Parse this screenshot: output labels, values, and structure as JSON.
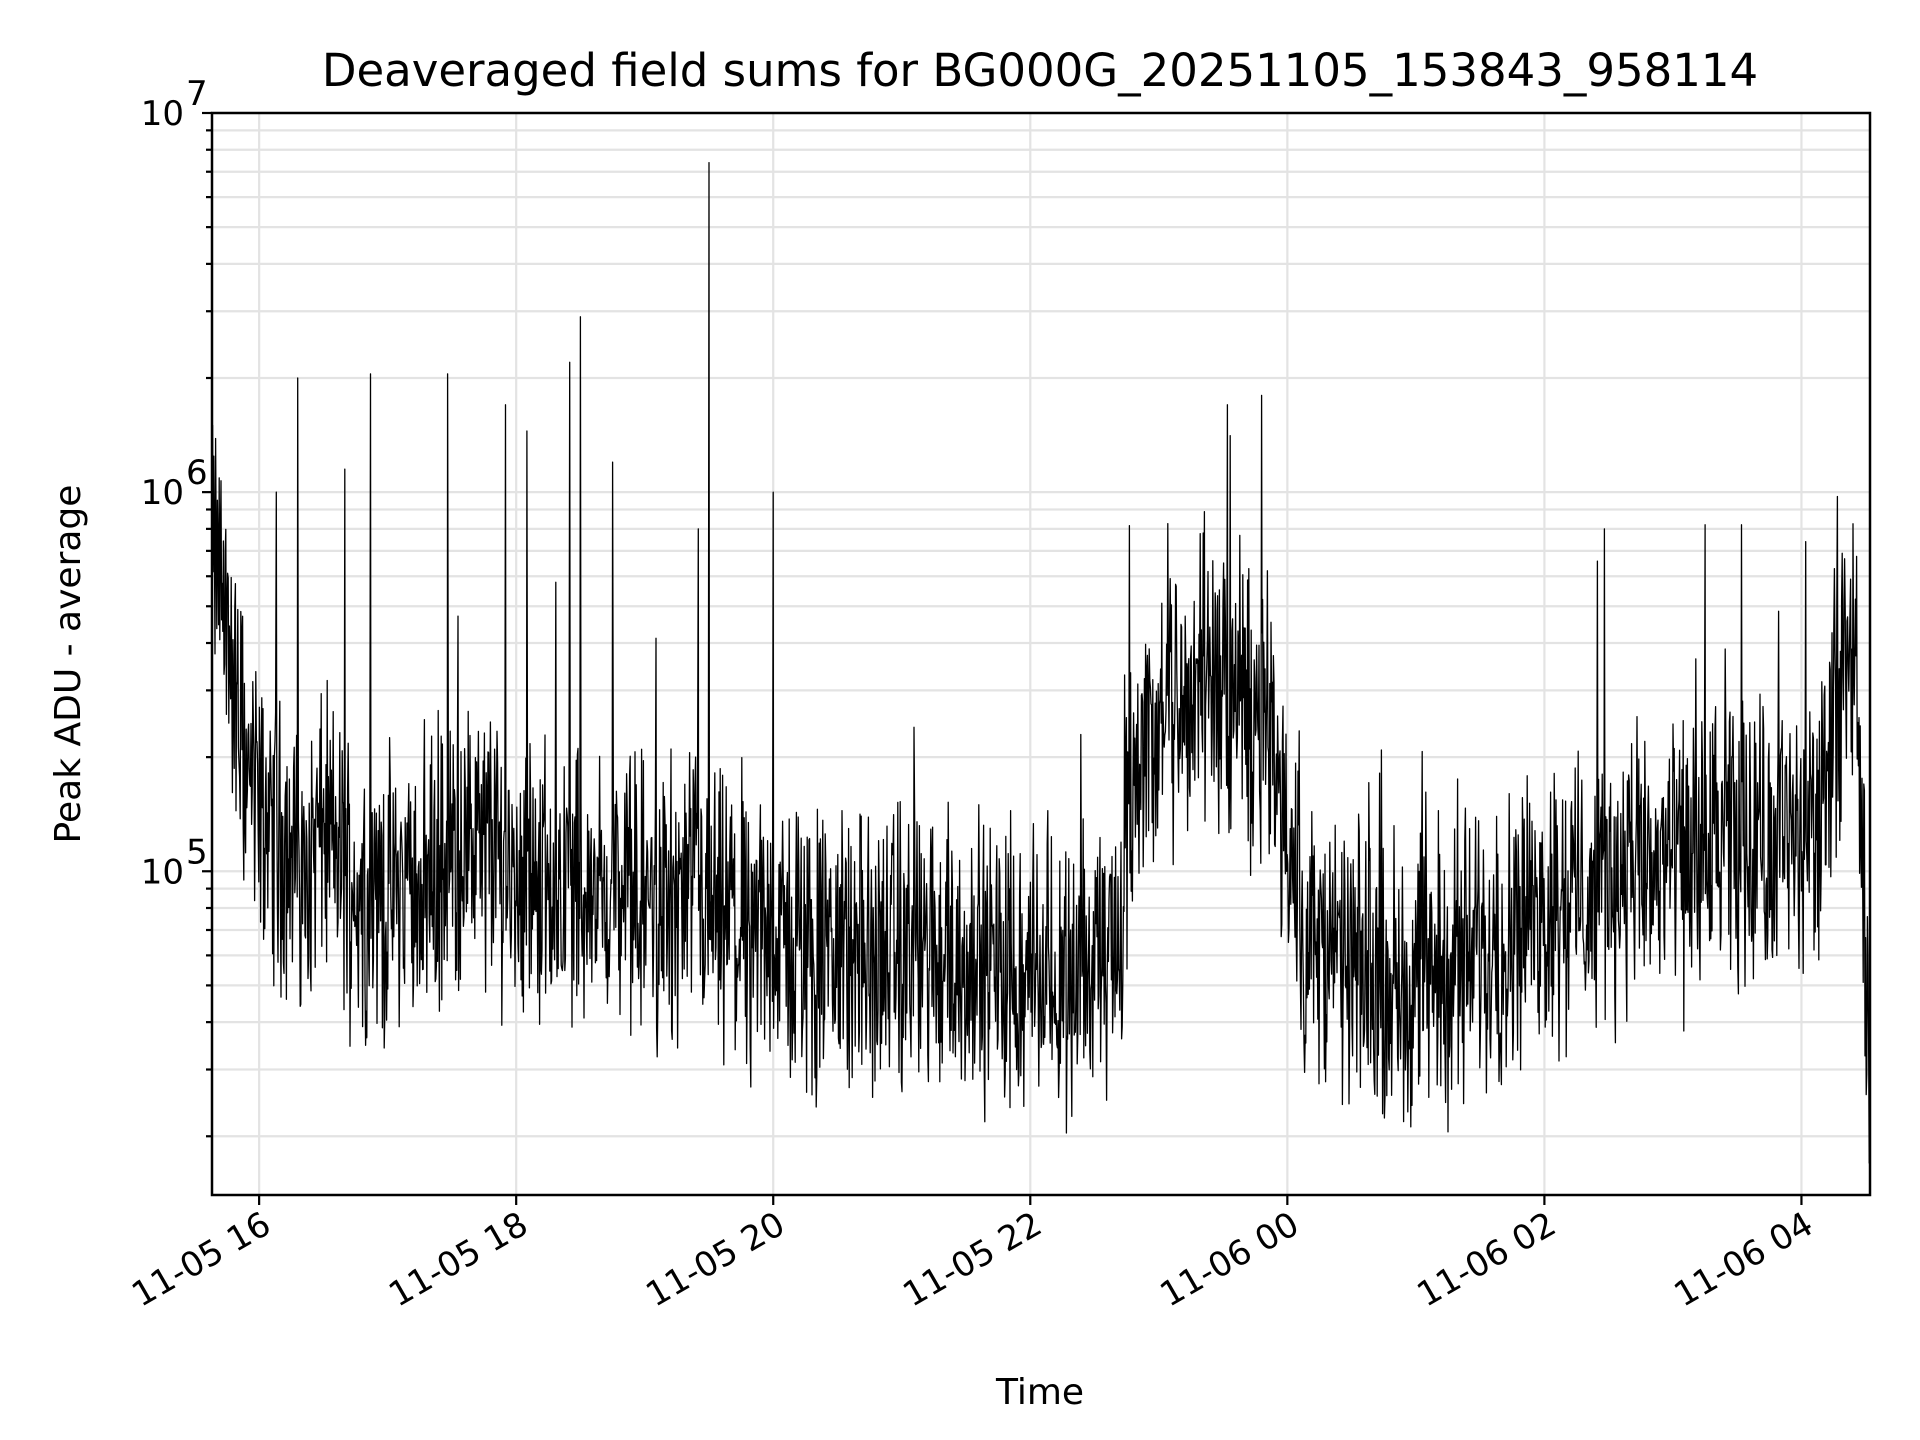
{
  "chart_data": {
    "type": "line",
    "title": "Deaveraged field sums for BG000G_20251105_153843_958114",
    "xlabel": "Time",
    "ylabel": "Peak ADU - average",
    "x_scale": "time",
    "y_scale": "log",
    "xlim": [
      "2025-11-05 15:38",
      "2025-11-06 04:32"
    ],
    "ylim": [
      14000,
      10000000
    ],
    "grid": true,
    "line_color": "#000000",
    "x_tick_labels": [
      "11-05 16",
      "11-05 18",
      "11-05 20",
      "11-05 22",
      "11-06 00",
      "11-06 02",
      "11-06 04"
    ],
    "x_tick_values": [
      "2025-11-05 16:00",
      "2025-11-05 18:00",
      "2025-11-05 20:00",
      "2025-11-05 22:00",
      "2025-11-06 00:00",
      "2025-11-06 02:00",
      "2025-11-06 04:00"
    ],
    "y_ticks": [
      {
        "value": 100000,
        "base": "10",
        "exp": "5"
      },
      {
        "value": 1000000,
        "base": "10",
        "exp": "6"
      },
      {
        "value": 10000000,
        "base": "10",
        "exp": "7"
      }
    ],
    "series": [
      {
        "x": [
          "2025-11-05 15:38",
          "2025-11-05 15:42",
          "2025-11-05 15:46",
          "2025-11-05 15:50",
          "2025-11-05 15:55",
          "2025-11-05 16:00",
          "2025-11-05 16:10",
          "2025-11-05 16:20",
          "2025-11-05 16:30",
          "2025-11-05 16:45",
          "2025-11-05 17:00",
          "2025-11-05 17:15",
          "2025-11-05 17:30",
          "2025-11-05 17:45",
          "2025-11-05 18:00",
          "2025-11-05 18:20",
          "2025-11-05 18:40",
          "2025-11-05 19:00",
          "2025-11-05 19:20",
          "2025-11-05 19:40",
          "2025-11-05 20:00",
          "2025-11-05 20:30",
          "2025-11-05 21:00",
          "2025-11-05 21:30",
          "2025-11-05 22:00",
          "2025-11-05 22:30",
          "2025-11-05 22:42",
          "2025-11-05 22:45",
          "2025-11-05 22:55",
          "2025-11-05 23:05",
          "2025-11-05 23:15",
          "2025-11-05 23:25",
          "2025-11-05 23:35",
          "2025-11-05 23:45",
          "2025-11-05 23:52",
          "2025-11-05 23:58",
          "2025-11-06 00:10",
          "2025-11-06 00:30",
          "2025-11-06 00:50",
          "2025-11-06 01:10",
          "2025-11-06 01:30",
          "2025-11-06 02:00",
          "2025-11-06 02:30",
          "2025-11-06 03:00",
          "2025-11-06 03:30",
          "2025-11-06 04:00",
          "2025-11-06 04:12",
          "2025-11-06 04:20",
          "2025-11-06 04:26",
          "2025-11-06 04:32"
        ],
        "y": [
          700000,
          600000,
          400000,
          250000,
          180000,
          150000,
          120000,
          100000,
          130000,
          90000,
          85000,
          95000,
          110000,
          120000,
          100000,
          95000,
          90000,
          85000,
          80000,
          70000,
          65000,
          60000,
          60000,
          58000,
          55000,
          55000,
          65000,
          150000,
          220000,
          260000,
          300000,
          310000,
          290000,
          250000,
          200000,
          150000,
          65000,
          55000,
          52000,
          55000,
          62000,
          80000,
          95000,
          105000,
          115000,
          120000,
          140000,
          450000,
          300000,
          25000
        ],
        "spikes": [
          {
            "x": "2025-11-05 16:08",
            "y": 1000000
          },
          {
            "x": "2025-11-05 16:18",
            "y": 2000000
          },
          {
            "x": "2025-11-05 16:40",
            "y": 1150000
          },
          {
            "x": "2025-11-05 16:52",
            "y": 2050000
          },
          {
            "x": "2025-11-05 17:28",
            "y": 2050000
          },
          {
            "x": "2025-11-05 17:55",
            "y": 1700000
          },
          {
            "x": "2025-11-05 18:05",
            "y": 1450000
          },
          {
            "x": "2025-11-05 18:25",
            "y": 2200000
          },
          {
            "x": "2025-11-05 18:30",
            "y": 2900000
          },
          {
            "x": "2025-11-05 18:45",
            "y": 1200000
          },
          {
            "x": "2025-11-05 19:25",
            "y": 800000
          },
          {
            "x": "2025-11-05 19:30",
            "y": 7400000
          },
          {
            "x": "2025-11-05 20:00",
            "y": 1000000
          },
          {
            "x": "2025-11-05 23:32",
            "y": 1700000
          },
          {
            "x": "2025-11-05 23:48",
            "y": 1800000
          },
          {
            "x": "2025-11-06 02:28",
            "y": 800000
          },
          {
            "x": "2025-11-06 03:15",
            "y": 820000
          },
          {
            "x": "2025-11-06 03:32",
            "y": 820000
          },
          {
            "x": "2025-11-06 04:02",
            "y": 740000
          }
        ]
      }
    ]
  }
}
